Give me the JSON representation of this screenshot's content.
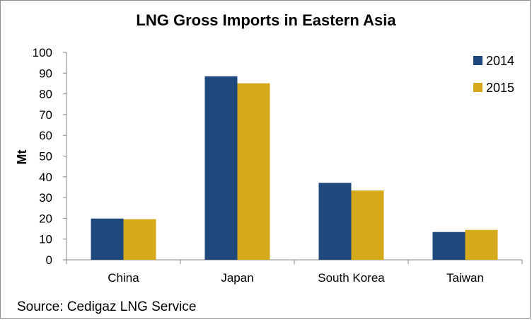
{
  "chart_data": {
    "type": "bar",
    "title": "LNG Gross Imports in Eastern Asia",
    "ylabel": "Mt",
    "xlabel": "",
    "categories": [
      "China",
      "Japan",
      "South Korea",
      "Taiwan"
    ],
    "series": [
      {
        "name": "2014",
        "values": [
          19.9,
          88.5,
          37.1,
          13.4
        ],
        "color": "#1f497d"
      },
      {
        "name": "2015",
        "values": [
          19.6,
          85.1,
          33.4,
          14.4
        ],
        "color": "#d4a91c"
      }
    ],
    "ylim": [
      0,
      100
    ],
    "yticks": [
      0,
      10,
      20,
      30,
      40,
      50,
      60,
      70,
      80,
      90,
      100
    ],
    "grid": false,
    "legend_position": "top-right"
  },
  "source_note": "Source: Cedigaz LNG Service"
}
